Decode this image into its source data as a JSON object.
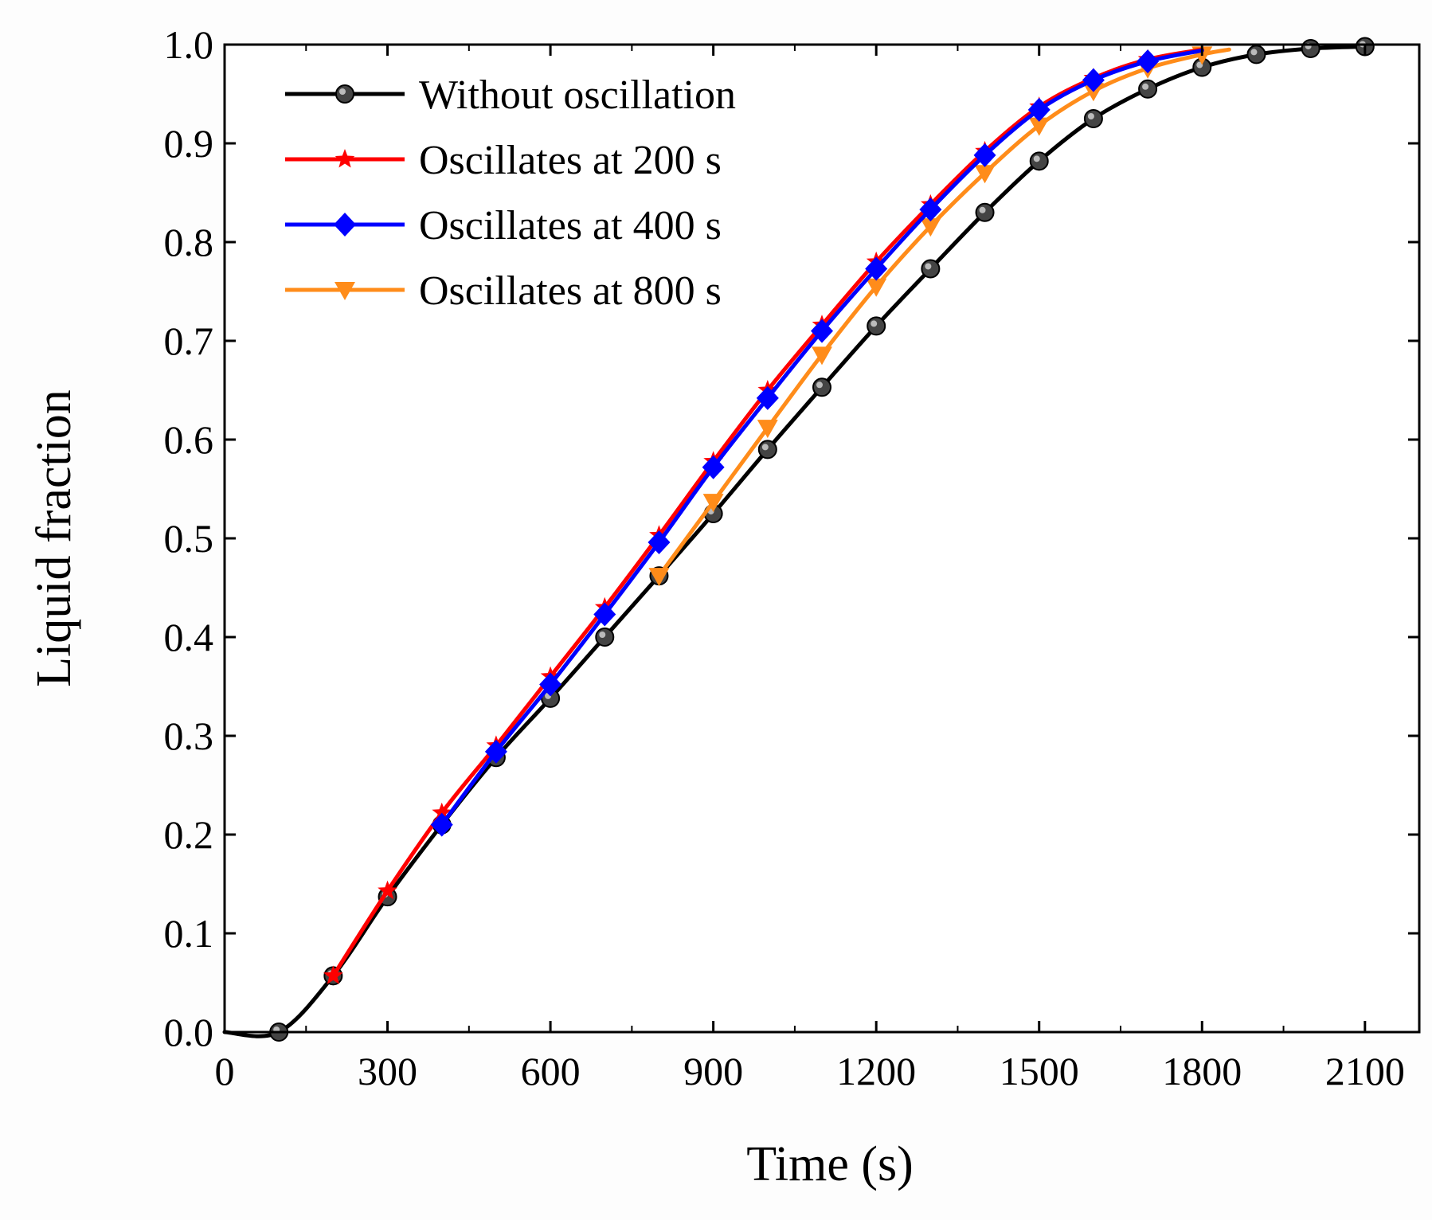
{
  "chart_data": {
    "type": "line",
    "xlabel": "Time (s)",
    "ylabel": "Liquid fraction",
    "xlim": [
      0,
      2200
    ],
    "ylim": [
      0.0,
      1.0
    ],
    "xticks": [
      0,
      300,
      600,
      900,
      1200,
      1500,
      1800,
      2100
    ],
    "xtick_labels": [
      "0",
      "300",
      "600",
      "900",
      "1200",
      "1500",
      "1800",
      "2100"
    ],
    "yticks": [
      0.0,
      0.1,
      0.2,
      0.3,
      0.4,
      0.5,
      0.6,
      0.7,
      0.8,
      0.9,
      1.0
    ],
    "ytick_labels": [
      "0.0",
      "0.1",
      "0.2",
      "0.3",
      "0.4",
      "0.5",
      "0.6",
      "0.7",
      "0.8",
      "0.9",
      "1.0"
    ],
    "legend_position": "top-left",
    "series": [
      {
        "name": "Without oscillation",
        "color": "#000000",
        "marker": "circle",
        "line_x": [
          0,
          100,
          200,
          300,
          400,
          500,
          600,
          700,
          800,
          900,
          1000,
          1100,
          1200,
          1300,
          1400,
          1500,
          1600,
          1700,
          1800,
          1900,
          2000,
          2100
        ],
        "line_y": [
          0.0,
          0.0,
          0.057,
          0.137,
          0.21,
          0.278,
          0.338,
          0.4,
          0.462,
          0.525,
          0.59,
          0.653,
          0.715,
          0.773,
          0.83,
          0.882,
          0.925,
          0.955,
          0.977,
          0.99,
          0.996,
          0.998
        ],
        "markers_x": [
          100,
          200,
          300,
          400,
          500,
          600,
          700,
          800,
          900,
          1000,
          1100,
          1200,
          1300,
          1400,
          1500,
          1600,
          1700,
          1800,
          1900,
          2000,
          2100
        ],
        "markers_y": [
          0.0,
          0.057,
          0.137,
          0.21,
          0.278,
          0.338,
          0.4,
          0.462,
          0.525,
          0.59,
          0.653,
          0.715,
          0.773,
          0.83,
          0.882,
          0.925,
          0.955,
          0.977,
          0.99,
          0.996,
          0.998
        ]
      },
      {
        "name": "Oscillates at 200 s",
        "color": "#ff0000",
        "marker": "star",
        "line_x": [
          200,
          300,
          400,
          500,
          600,
          700,
          800,
          900,
          1000,
          1100,
          1200,
          1300,
          1400,
          1500,
          1600,
          1700,
          1800
        ],
        "line_y": [
          0.057,
          0.143,
          0.222,
          0.29,
          0.36,
          0.43,
          0.503,
          0.578,
          0.65,
          0.716,
          0.78,
          0.838,
          0.892,
          0.937,
          0.966,
          0.985,
          0.995
        ],
        "markers_x": [
          200,
          300,
          400,
          500,
          600,
          700,
          800,
          900,
          1000,
          1100,
          1200,
          1300,
          1400,
          1500,
          1600,
          1700
        ],
        "markers_y": [
          0.057,
          0.143,
          0.222,
          0.29,
          0.36,
          0.43,
          0.503,
          0.578,
          0.65,
          0.716,
          0.78,
          0.838,
          0.892,
          0.937,
          0.966,
          0.985
        ]
      },
      {
        "name": "Oscillates at 400 s",
        "color": "#0000ff",
        "marker": "diamond",
        "line_x": [
          400,
          500,
          600,
          700,
          800,
          900,
          1000,
          1100,
          1200,
          1300,
          1400,
          1500,
          1600,
          1700,
          1800
        ],
        "line_y": [
          0.21,
          0.284,
          0.352,
          0.423,
          0.496,
          0.572,
          0.642,
          0.71,
          0.773,
          0.833,
          0.888,
          0.934,
          0.964,
          0.983,
          0.994
        ],
        "markers_x": [
          400,
          500,
          600,
          700,
          800,
          900,
          1000,
          1100,
          1200,
          1300,
          1400,
          1500,
          1600,
          1700
        ],
        "markers_y": [
          0.21,
          0.284,
          0.352,
          0.423,
          0.496,
          0.572,
          0.642,
          0.71,
          0.773,
          0.833,
          0.888,
          0.934,
          0.964,
          0.983
        ]
      },
      {
        "name": "Oscillates at 800 s",
        "color": "#ff8c1a",
        "marker": "triangle-down",
        "line_x": [
          800,
          900,
          1000,
          1100,
          1200,
          1300,
          1400,
          1500,
          1600,
          1700,
          1800,
          1850
        ],
        "line_y": [
          0.462,
          0.537,
          0.612,
          0.686,
          0.755,
          0.816,
          0.87,
          0.918,
          0.953,
          0.976,
          0.99,
          0.995
        ],
        "markers_x": [
          800,
          900,
          1000,
          1100,
          1200,
          1300,
          1400,
          1500,
          1600,
          1700,
          1800
        ],
        "markers_y": [
          0.462,
          0.537,
          0.612,
          0.686,
          0.755,
          0.816,
          0.87,
          0.918,
          0.953,
          0.976,
          0.99
        ]
      }
    ]
  }
}
